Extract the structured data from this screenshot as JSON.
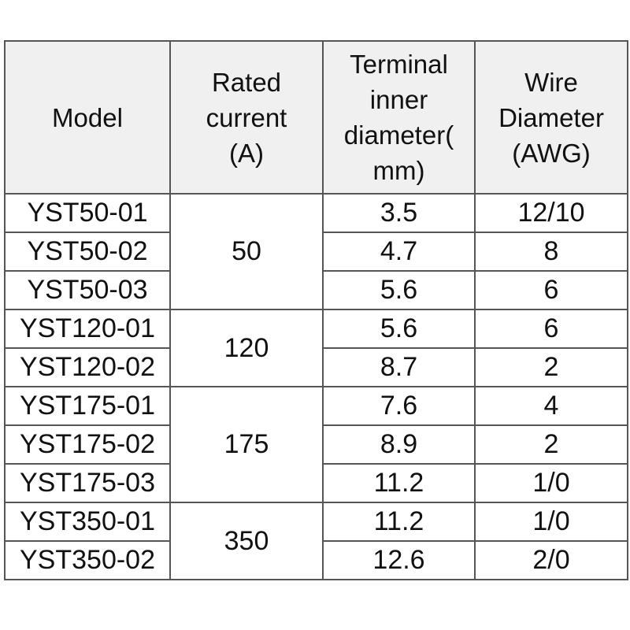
{
  "headers": {
    "model": "Model",
    "rated_current": "Rated\ncurrent\n(A)",
    "terminal_inner_diameter": "Terminal\ninner\ndiameter(\nmm)",
    "wire_diameter": "Wire\nDiameter\n(AWG)"
  },
  "rows": [
    {
      "model": "YST50-01",
      "current": "50",
      "diameter": "3.5",
      "awg": "12/10"
    },
    {
      "model": "YST50-02",
      "diameter": "4.7",
      "awg": "8"
    },
    {
      "model": "YST50-03",
      "diameter": "5.6",
      "awg": "6"
    },
    {
      "model": "YST120-01",
      "current": "120",
      "diameter": "5.6",
      "awg": "6"
    },
    {
      "model": "YST120-02",
      "diameter": "8.7",
      "awg": "2"
    },
    {
      "model": "YST175-01",
      "current": "175",
      "diameter": "7.6",
      "awg": "4"
    },
    {
      "model": "YST175-02",
      "diameter": "8.9",
      "awg": "2"
    },
    {
      "model": "YST175-03",
      "diameter": "11.2",
      "awg": "1/0"
    },
    {
      "model": "YST350-01",
      "current": "350",
      "diameter": "11.2",
      "awg": "1/0"
    },
    {
      "model": "YST350-02",
      "diameter": "12.6",
      "awg": "2/0"
    }
  ]
}
